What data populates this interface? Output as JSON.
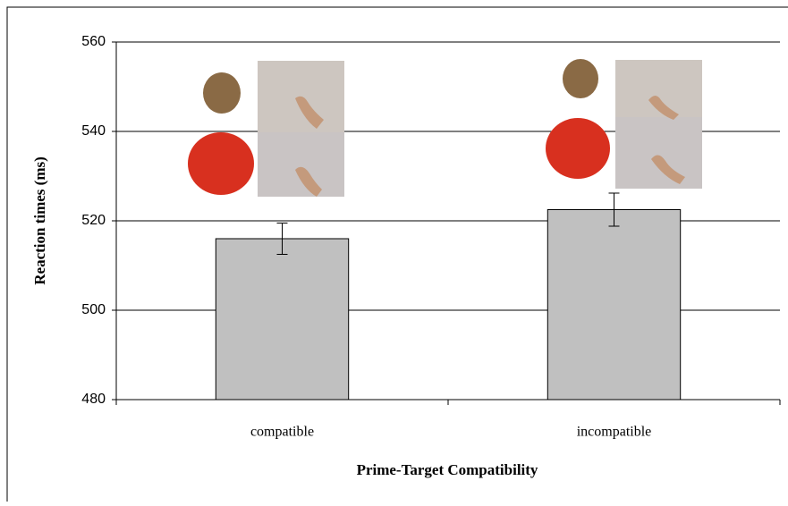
{
  "chart_data": {
    "type": "bar",
    "y_label": "Reaction times (ms)",
    "x_label": "Prime-Target Compatibility",
    "categories": [
      "compatible",
      "incompatible"
    ],
    "values": [
      516,
      522.5
    ],
    "errors": [
      3.5,
      3.7
    ],
    "color": "#c0c0c0",
    "ylim": [
      480,
      560
    ],
    "yticks": [
      480,
      500,
      520,
      540,
      560
    ],
    "grid": true
  }
}
